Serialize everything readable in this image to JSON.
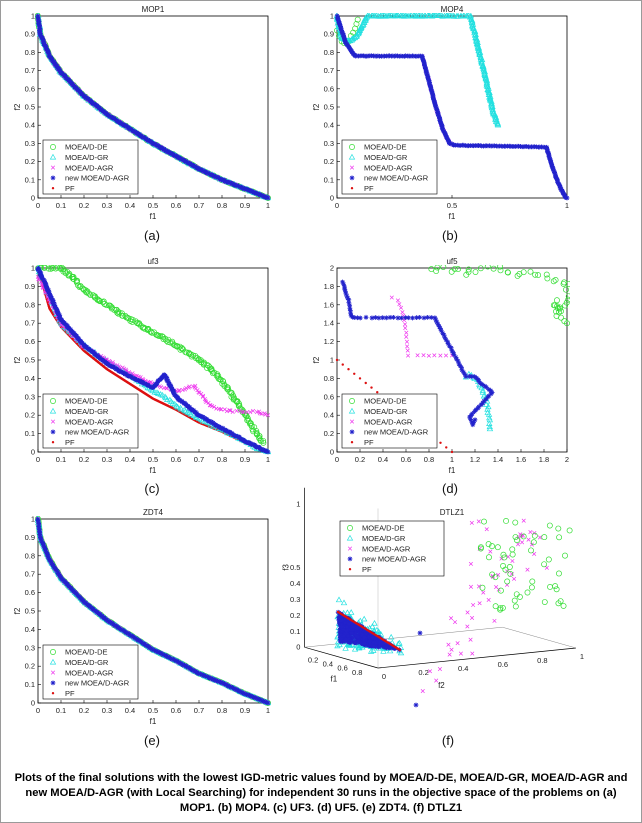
{
  "caption": "Plots of the final solutions with the lowest IGD-metric values found by MOEA/D-DE, MOEA/D-GR, MOEA/D-AGR and new MOEA/D-AGR (with Local Searching) for independent 30 runs in the objective space of the problems on (a) MOP1. (b) MOP4. (c) UF3. (d) UF5. (e) ZDT4. (f) DTLZ1",
  "legend": [
    "MOEA/D-DE",
    "MOEA/D-GR",
    "MOEA/D-AGR",
    "new MOEA/D-AGR",
    "PF"
  ],
  "colors": {
    "MOEA/D-DE": "#33dd33",
    "MOEA/D-GR": "#22e0e0",
    "MOEA/D-AGR": "#ee33ee",
    "new MOEA/D-AGR": "#2222cc",
    "PF": "#dd1111"
  },
  "chart_data": [
    {
      "type": "scatter",
      "panel": "(a)",
      "title": "MOP1",
      "xlabel": "f1",
      "ylabel": "f2",
      "xlim": [
        0,
        1
      ],
      "ylim": [
        0,
        1
      ],
      "legend_position": "bottom-left",
      "xticks": [
        "0",
        "0.1",
        "0.2",
        "0.3",
        "0.4",
        "0.5",
        "0.6",
        "0.7",
        "0.8",
        "0.9",
        "1"
      ],
      "yticks": [
        "0",
        "0.1",
        "0.2",
        "0.3",
        "0.4",
        "0.5",
        "0.6",
        "0.7",
        "0.8",
        "0.9",
        "1"
      ],
      "series": [
        {
          "name": "MOEA/D-DE",
          "x": [
            0,
            0.01,
            0.05,
            0.1,
            0.2,
            0.3,
            0.4,
            0.5,
            0.6,
            0.7,
            0.8,
            0.9,
            1.0
          ],
          "y": [
            1.0,
            0.9,
            0.78,
            0.69,
            0.56,
            0.46,
            0.38,
            0.3,
            0.23,
            0.16,
            0.1,
            0.05,
            0.0
          ]
        },
        {
          "name": "MOEA/D-GR",
          "x": [
            0,
            0.01,
            0.05,
            0.1,
            0.2,
            0.3,
            0.4,
            0.5,
            0.6,
            0.7,
            0.8,
            0.9,
            1.0
          ],
          "y": [
            1.0,
            0.9,
            0.78,
            0.69,
            0.56,
            0.46,
            0.38,
            0.3,
            0.23,
            0.16,
            0.1,
            0.05,
            0.0
          ]
        },
        {
          "name": "MOEA/D-AGR",
          "x": [
            0,
            0.01,
            0.05,
            0.1,
            0.2,
            0.3,
            0.4,
            0.5,
            0.6,
            0.7,
            0.8,
            0.9,
            1.0
          ],
          "y": [
            1.0,
            0.9,
            0.78,
            0.69,
            0.56,
            0.46,
            0.38,
            0.3,
            0.23,
            0.16,
            0.1,
            0.05,
            0.0
          ]
        },
        {
          "name": "new MOEA/D-AGR",
          "x": [
            0,
            0.01,
            0.05,
            0.1,
            0.2,
            0.3,
            0.4,
            0.5,
            0.6,
            0.7,
            0.8,
            0.9,
            1.0
          ],
          "y": [
            1.0,
            0.9,
            0.78,
            0.69,
            0.56,
            0.46,
            0.38,
            0.3,
            0.23,
            0.16,
            0.1,
            0.05,
            0.0
          ]
        },
        {
          "name": "PF",
          "x": [
            0,
            0.01,
            0.05,
            0.1,
            0.2,
            0.3,
            0.4,
            0.5,
            0.6,
            0.7,
            0.8,
            0.9,
            1.0
          ],
          "y": [
            1.0,
            0.9,
            0.78,
            0.68,
            0.55,
            0.45,
            0.37,
            0.29,
            0.22,
            0.15,
            0.09,
            0.04,
            0.0
          ]
        }
      ]
    },
    {
      "type": "scatter",
      "panel": "(b)",
      "title": "MOP4",
      "xlabel": "f1",
      "ylabel": "f2",
      "xlim": [
        0,
        1
      ],
      "ylim": [
        0,
        1
      ],
      "legend_position": "bottom-left",
      "xticks": [
        "0",
        "0.5",
        "1"
      ],
      "yticks": [
        "0",
        "0.1",
        "0.2",
        "0.3",
        "0.4",
        "0.5",
        "0.6",
        "0.7",
        "0.8",
        "0.9",
        "1"
      ],
      "series": [
        {
          "name": "MOEA/D-DE",
          "x": [
            0.0,
            0.01,
            0.02,
            0.03,
            0.05,
            0.06,
            0.08,
            0.09
          ],
          "y": [
            0.92,
            0.89,
            0.86,
            0.85,
            0.86,
            0.89,
            0.93,
            0.98
          ]
        },
        {
          "name": "MOEA/D-GR",
          "x": [
            0.0,
            0.02,
            0.05,
            0.08,
            0.1,
            0.12,
            0.13,
            0.58,
            0.6,
            0.62,
            0.64,
            0.66,
            0.68,
            0.7
          ],
          "y": [
            1.0,
            0.88,
            0.86,
            0.88,
            0.92,
            0.97,
            1.0,
            1.0,
            0.9,
            0.8,
            0.7,
            0.58,
            0.47,
            0.4
          ]
        },
        {
          "name": "MOEA/D-AGR",
          "x": [
            0.37,
            0.4,
            0.43,
            0.46,
            0.49,
            0.51
          ],
          "y": [
            0.78,
            0.64,
            0.5,
            0.38,
            0.3,
            0.29
          ]
        },
        {
          "name": "new MOEA/D-AGR",
          "x": [
            0.0,
            0.02,
            0.04,
            0.06,
            0.08,
            0.37,
            0.4,
            0.43,
            0.46,
            0.49,
            0.51,
            0.91,
            0.93,
            0.95,
            0.97,
            0.99,
            1.0
          ],
          "y": [
            1.0,
            0.92,
            0.85,
            0.81,
            0.78,
            0.78,
            0.64,
            0.5,
            0.38,
            0.3,
            0.29,
            0.28,
            0.2,
            0.12,
            0.06,
            0.01,
            0.0
          ]
        },
        {
          "name": "PF",
          "x": [],
          "y": []
        }
      ]
    },
    {
      "type": "scatter",
      "panel": "(c)",
      "title": "uf3",
      "xlabel": "f1",
      "ylabel": "f2",
      "xlim": [
        0,
        1
      ],
      "ylim": [
        0,
        1
      ],
      "legend_position": "bottom-left",
      "xticks": [
        "0",
        "0.1",
        "0.2",
        "0.3",
        "0.4",
        "0.5",
        "0.6",
        "0.7",
        "0.8",
        "0.9",
        "1"
      ],
      "yticks": [
        "0",
        "0.1",
        "0.2",
        "0.3",
        "0.4",
        "0.5",
        "0.6",
        "0.7",
        "0.8",
        "0.9",
        "1"
      ],
      "series": [
        {
          "name": "MOEA/D-DE",
          "x": [
            0.0,
            0.05,
            0.1,
            0.15,
            0.2,
            0.3,
            0.4,
            0.5,
            0.6,
            0.7,
            0.78,
            0.85,
            0.9,
            0.95,
            0.98
          ],
          "y": [
            1.0,
            1.0,
            1.0,
            0.95,
            0.88,
            0.8,
            0.72,
            0.65,
            0.58,
            0.5,
            0.42,
            0.3,
            0.2,
            0.1,
            0.05
          ]
        },
        {
          "name": "MOEA/D-GR",
          "x": [
            0.0,
            0.1,
            0.2,
            0.3,
            0.4,
            0.5,
            0.55,
            0.6,
            0.7,
            0.8,
            0.9,
            0.95,
            1.0
          ],
          "y": [
            1.0,
            0.7,
            0.58,
            0.49,
            0.42,
            0.33,
            0.3,
            0.25,
            0.18,
            0.12,
            0.06,
            0.02,
            0.0
          ]
        },
        {
          "name": "MOEA/D-AGR",
          "x": [
            0.0,
            0.1,
            0.2,
            0.3,
            0.4,
            0.5,
            0.6,
            0.68,
            0.75,
            0.8,
            0.85,
            0.9,
            0.95,
            1.0
          ],
          "y": [
            0.95,
            0.7,
            0.57,
            0.5,
            0.43,
            0.37,
            0.33,
            0.36,
            0.25,
            0.23,
            0.22,
            0.22,
            0.22,
            0.2
          ]
        },
        {
          "name": "new MOEA/D-AGR",
          "x": [
            0.0,
            0.1,
            0.2,
            0.3,
            0.4,
            0.5,
            0.55,
            0.6,
            0.65,
            0.7,
            0.8,
            0.9,
            1.0
          ],
          "y": [
            1.0,
            0.72,
            0.58,
            0.48,
            0.41,
            0.35,
            0.42,
            0.3,
            0.25,
            0.2,
            0.13,
            0.06,
            0.0
          ]
        },
        {
          "name": "PF",
          "x": [
            0.0,
            0.05,
            0.1,
            0.2,
            0.3,
            0.4,
            0.5,
            0.6,
            0.7,
            0.8,
            0.9,
            1.0
          ],
          "y": [
            1.0,
            0.78,
            0.68,
            0.55,
            0.45,
            0.37,
            0.29,
            0.23,
            0.16,
            0.11,
            0.05,
            0.0
          ]
        }
      ]
    },
    {
      "type": "scatter",
      "panel": "(d)",
      "title": "uf5",
      "xlabel": "f1",
      "ylabel": "f2",
      "xlim": [
        0,
        2
      ],
      "ylim": [
        0,
        2
      ],
      "legend_position": "bottom-left",
      "xticks": [
        "0",
        "0.2",
        "0.4",
        "0.6",
        "0.8",
        "1",
        "1.2",
        "1.4",
        "1.6",
        "1.8",
        "2"
      ],
      "yticks": [
        "0",
        "0.2",
        "0.4",
        "0.6",
        "0.8",
        "1",
        "1.2",
        "1.4",
        "1.6",
        "1.8",
        "2"
      ],
      "series": [
        {
          "name": "MOEA/D-DE",
          "x": [
            0.8,
            0.95,
            1.1,
            1.25,
            1.4,
            1.55,
            1.7,
            1.85,
            1.95,
            2.0,
            1.97,
            1.93,
            1.9,
            2.0
          ],
          "y": [
            1.98,
            2.0,
            1.95,
            1.98,
            2.0,
            1.94,
            1.96,
            1.9,
            1.85,
            1.8,
            1.6,
            1.5,
            1.65,
            1.4
          ]
        },
        {
          "name": "MOEA/D-GR",
          "x": [
            1.12,
            1.15,
            1.2,
            1.22,
            1.25,
            1.27,
            1.3,
            1.32,
            1.33
          ],
          "y": [
            0.82,
            0.84,
            0.8,
            0.78,
            0.72,
            0.65,
            0.55,
            0.4,
            0.25
          ]
        },
        {
          "name": "MOEA/D-AGR",
          "x": [
            0.48,
            0.53,
            0.58,
            0.6,
            0.62,
            0.7,
            0.8,
            0.9,
            1.0
          ],
          "y": [
            1.68,
            1.65,
            1.48,
            1.3,
            1.05,
            1.05,
            1.05,
            1.05,
            1.05
          ]
        },
        {
          "name": "new MOEA/D-AGR",
          "x": [
            0.05,
            0.08,
            0.1,
            0.12,
            0.15,
            0.2,
            0.25,
            0.3,
            0.85,
            1.12,
            1.15,
            1.2,
            1.25,
            1.3,
            1.35,
            1.15,
            1.18,
            1.2
          ],
          "y": [
            1.85,
            1.72,
            1.65,
            1.48,
            1.46,
            1.46,
            1.46,
            1.46,
            1.46,
            0.82,
            0.82,
            0.82,
            0.75,
            0.7,
            0.65,
            0.38,
            0.3,
            0.35
          ]
        },
        {
          "name": "PF",
          "x": [
            0.0,
            0.1,
            0.2,
            0.3,
            0.4,
            0.5,
            0.6,
            0.7,
            0.8,
            0.9,
            1.0
          ],
          "y": [
            1.0,
            0.9,
            0.8,
            0.7,
            0.6,
            0.5,
            0.4,
            0.3,
            0.2,
            0.1,
            0.0
          ]
        }
      ]
    },
    {
      "type": "scatter",
      "panel": "(e)",
      "title": "ZDT4",
      "xlabel": "f1",
      "ylabel": "f2",
      "xlim": [
        0,
        1
      ],
      "ylim": [
        0,
        1
      ],
      "legend_position": "bottom-left",
      "xticks": [
        "0",
        "0.1",
        "0.2",
        "0.3",
        "0.4",
        "0.5",
        "0.6",
        "0.7",
        "0.8",
        "0.9",
        "1"
      ],
      "yticks": [
        "0",
        "0.1",
        "0.2",
        "0.3",
        "0.4",
        "0.5",
        "0.6",
        "0.7",
        "0.8",
        "0.9",
        "1"
      ],
      "series": [
        {
          "name": "MOEA/D-DE",
          "x": [
            0,
            0.01,
            0.05,
            0.1,
            0.2,
            0.3,
            0.4,
            0.5,
            0.6,
            0.7,
            0.8,
            0.9,
            1.0
          ],
          "y": [
            1.0,
            0.9,
            0.78,
            0.68,
            0.55,
            0.45,
            0.37,
            0.29,
            0.23,
            0.16,
            0.11,
            0.05,
            0.0
          ]
        },
        {
          "name": "MOEA/D-GR",
          "x": [
            0,
            0.01,
            0.05,
            0.1,
            0.2,
            0.3,
            0.4,
            0.5,
            0.6,
            0.7,
            0.8,
            0.9,
            1.0
          ],
          "y": [
            1.0,
            0.9,
            0.78,
            0.68,
            0.55,
            0.45,
            0.37,
            0.29,
            0.23,
            0.16,
            0.11,
            0.05,
            0.0
          ]
        },
        {
          "name": "MOEA/D-AGR",
          "x": [
            0,
            0.01,
            0.05,
            0.1,
            0.2,
            0.3,
            0.4,
            0.5,
            0.6,
            0.7,
            0.8,
            0.9,
            1.0
          ],
          "y": [
            1.0,
            0.9,
            0.78,
            0.68,
            0.55,
            0.45,
            0.37,
            0.29,
            0.23,
            0.16,
            0.11,
            0.05,
            0.0
          ]
        },
        {
          "name": "new MOEA/D-AGR",
          "x": [
            0,
            0.01,
            0.05,
            0.1,
            0.2,
            0.3,
            0.4,
            0.5,
            0.6,
            0.7,
            0.8,
            0.9,
            1.0
          ],
          "y": [
            1.0,
            0.9,
            0.78,
            0.68,
            0.55,
            0.45,
            0.37,
            0.29,
            0.23,
            0.16,
            0.11,
            0.05,
            0.0
          ]
        },
        {
          "name": "PF",
          "x": [
            0,
            0.01,
            0.05,
            0.1,
            0.2,
            0.3,
            0.4,
            0.5,
            0.6,
            0.7,
            0.8,
            0.9,
            1.0
          ],
          "y": [
            1.0,
            0.9,
            0.78,
            0.68,
            0.55,
            0.45,
            0.37,
            0.29,
            0.23,
            0.16,
            0.11,
            0.05,
            0.0
          ]
        }
      ]
    },
    {
      "type": "scatter3d",
      "panel": "(f)",
      "title": "DTLZ1",
      "xlabel": "f1",
      "ylabel": "f2",
      "zlabel": "f3",
      "legend_position": "top-left",
      "f1_ticks": [
        "0.2",
        "0.4",
        "0.6",
        "0.8"
      ],
      "f2_ticks": [
        "0",
        "0.2",
        "0.4",
        "0.6",
        "0.8",
        "1"
      ],
      "f3_ticks": [
        "0",
        "0.1",
        "0.2",
        "0.3",
        "0.4",
        "0.5",
        "1"
      ],
      "series": [
        {
          "name": "MOEA/D-DE",
          "x": [],
          "y": [],
          "z": []
        },
        {
          "name": "MOEA/D-GR",
          "x": [],
          "y": [],
          "z": []
        },
        {
          "name": "MOEA/D-AGR",
          "x": [],
          "y": [],
          "z": []
        },
        {
          "name": "new MOEA/D-AGR",
          "x": [],
          "y": [],
          "z": []
        },
        {
          "name": "PF",
          "x": [],
          "y": [],
          "z": []
        }
      ]
    }
  ]
}
